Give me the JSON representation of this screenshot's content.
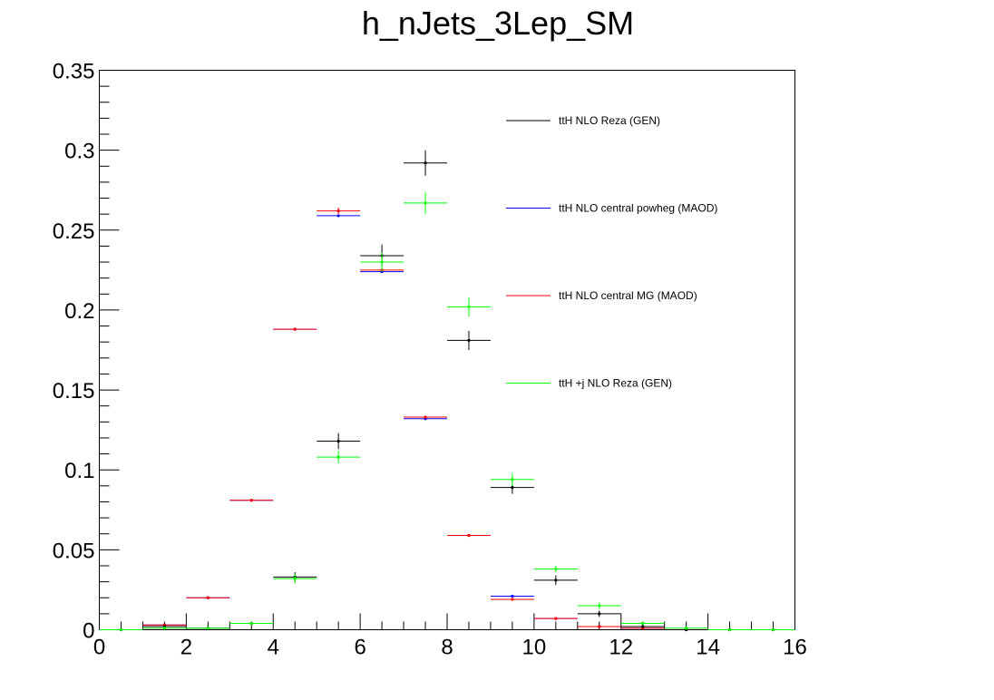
{
  "chart_data": {
    "type": "scatter",
    "title": "h_nJets_3Lep_SM",
    "xlabel": "",
    "ylabel": "",
    "xlim": [
      0,
      16
    ],
    "ylim": [
      0,
      0.35
    ],
    "x_ticks": [
      "0",
      "2",
      "4",
      "6",
      "8",
      "10",
      "12",
      "14",
      "16"
    ],
    "y_ticks": [
      "0",
      "0.05",
      "0.1",
      "0.15",
      "0.2",
      "0.25",
      "0.3",
      "0.35"
    ],
    "grid": false,
    "legend_position": "top-right",
    "bin_width": 1,
    "x": [
      0.5,
      1.5,
      2.5,
      3.5,
      4.5,
      5.5,
      6.5,
      7.5,
      8.5,
      9.5,
      10.5,
      11.5,
      12.5,
      13.5,
      14.5,
      15.5
    ],
    "series": [
      {
        "name": "ttH NLO central powheg (MAOD)",
        "color": "#0000ff",
        "values": [
          0,
          0.003,
          0.02,
          0.081,
          0.188,
          0.259,
          0.224,
          0.132,
          0.059,
          0.021,
          0.007,
          0.002,
          0.001,
          0,
          0,
          0
        ],
        "errors": [
          0,
          0,
          0,
          0,
          0,
          0,
          0,
          0,
          0,
          0,
          0,
          0,
          0,
          0,
          0,
          0
        ]
      },
      {
        "name": "ttH NLO central MG (MAOD)",
        "color": "#ff0000",
        "values": [
          0,
          0.003,
          0.02,
          0.081,
          0.188,
          0.262,
          0.225,
          0.133,
          0.059,
          0.019,
          0.007,
          0.002,
          0.001,
          0,
          0,
          0
        ],
        "errors": [
          0,
          0,
          0,
          0,
          0,
          0.002,
          0,
          0,
          0,
          0,
          0,
          0,
          0,
          0,
          0,
          0
        ]
      },
      {
        "name": "ttH NLO Reza (GEN)",
        "color": "#000000",
        "values": [
          0,
          0.002,
          0.001,
          0.004,
          0.033,
          0.118,
          0.234,
          0.292,
          0.181,
          0.089,
          0.031,
          0.01,
          0.002,
          0,
          0,
          0
        ],
        "errors": [
          0,
          0.001,
          0.001,
          0.001,
          0.003,
          0.005,
          0.007,
          0.008,
          0.006,
          0.004,
          0.003,
          0.002,
          0.001,
          0,
          0,
          0
        ]
      },
      {
        "name": "ttH +j NLO Reza (GEN)",
        "color": "#00ff00",
        "values": [
          0,
          0.001,
          0.001,
          0.004,
          0.032,
          0.108,
          0.23,
          0.267,
          0.202,
          0.094,
          0.038,
          0.015,
          0.004,
          0.001,
          0,
          0
        ],
        "errors": [
          0,
          0.001,
          0.001,
          0.001,
          0.003,
          0.004,
          0.006,
          0.007,
          0.006,
          0.004,
          0.002,
          0.002,
          0.001,
          0.001,
          0,
          0
        ]
      }
    ],
    "legend_order": [
      "ttH NLO Reza (GEN)",
      "ttH NLO central powheg (MAOD)",
      "ttH NLO central MG (MAOD)",
      "ttH +j NLO Reza (GEN)"
    ]
  }
}
